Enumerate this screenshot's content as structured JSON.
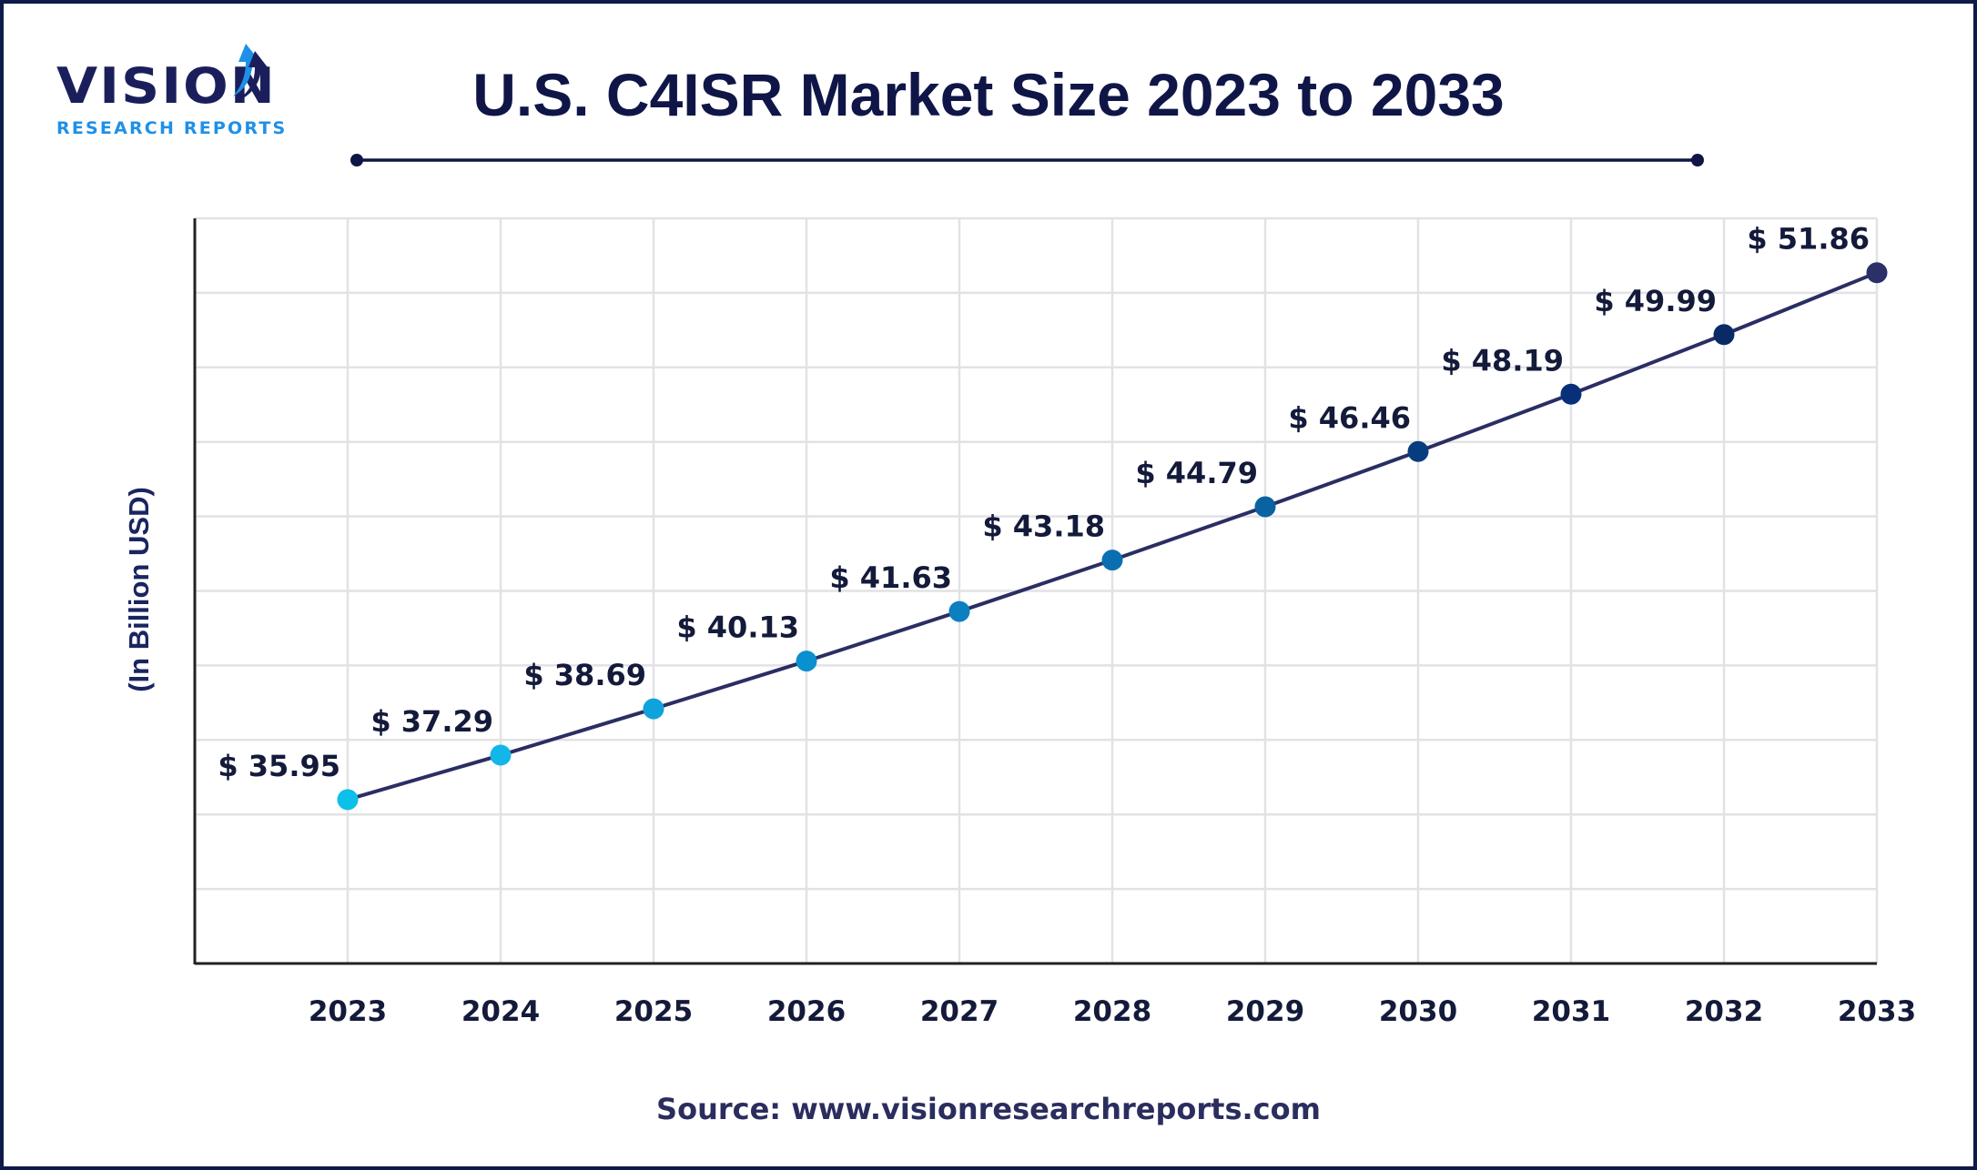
{
  "logo": {
    "main": "VISION",
    "sub": "RESEARCH REPORTS"
  },
  "source": "Source: www.visionresearchreports.com",
  "colors": {
    "title": "#0f1647",
    "line": "#2a2e63",
    "grid": "#e2e2e6",
    "axis": "#222222",
    "label": "#131a3a",
    "border": "#0d1a4a"
  },
  "chart_data": {
    "type": "line",
    "title": "U.S. C4ISR Market Size 2023 to 2033",
    "xlabel": "",
    "ylabel": "(In Billion USD)",
    "categories": [
      "2023",
      "2024",
      "2025",
      "2026",
      "2027",
      "2028",
      "2029",
      "2030",
      "2031",
      "2032",
      "2033"
    ],
    "series": [
      {
        "name": "U.S. C4ISR Market Size",
        "values": [
          35.95,
          37.29,
          38.69,
          40.13,
          41.63,
          43.18,
          44.79,
          46.46,
          48.19,
          49.99,
          51.86
        ],
        "data_labels": [
          "$ 35.95",
          "$ 37.29",
          "$ 38.69",
          "$ 40.13",
          "$ 41.63",
          "$ 43.18",
          "$ 44.79",
          "$ 46.46",
          "$ 48.19",
          "$ 49.99",
          "$ 51.86"
        ],
        "point_colors": [
          "#0cc0ea",
          "#13b6e8",
          "#0fa3dc",
          "#0b90cf",
          "#0a80c0",
          "#0a6fb0",
          "#0a62a0",
          "#073d7e",
          "#08307a",
          "#0a2a66",
          "#2c3068"
        ]
      }
    ],
    "ylim": [
      31,
      53.5
    ],
    "y_tick_labels_shown": false,
    "grid": true,
    "legend": "none"
  }
}
